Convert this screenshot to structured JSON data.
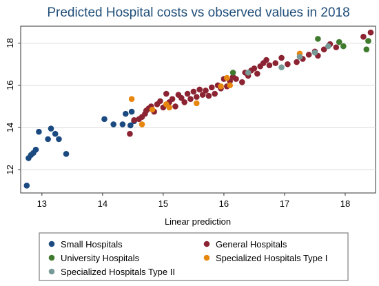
{
  "chart_data": {
    "type": "scatter",
    "title": "Predicted Hospital costs vs observed values in 2018",
    "xlabel": "Linear prediction",
    "ylabel": "",
    "xlim": [
      12.65,
      18.5
    ],
    "ylim": [
      10.9,
      18.8
    ],
    "xticks": [
      "13",
      "14",
      "15",
      "16",
      "17",
      "18"
    ],
    "yticks": [
      "12",
      "14",
      "16",
      "18"
    ],
    "grid": "horizontal",
    "legend_position": "bottom",
    "series": [
      {
        "name": "Small Hospitals",
        "color": "#1a4a80",
        "points": [
          [
            12.75,
            11.25
          ],
          [
            12.78,
            12.55
          ],
          [
            12.82,
            12.7
          ],
          [
            12.86,
            12.8
          ],
          [
            12.9,
            12.95
          ],
          [
            12.95,
            13.8
          ],
          [
            13.1,
            13.45
          ],
          [
            13.15,
            13.95
          ],
          [
            13.22,
            13.7
          ],
          [
            13.28,
            13.45
          ],
          [
            13.4,
            12.75
          ],
          [
            14.03,
            14.4
          ],
          [
            14.18,
            14.15
          ],
          [
            14.33,
            14.15
          ],
          [
            14.38,
            14.65
          ],
          [
            14.46,
            14.1
          ],
          [
            14.48,
            14.75
          ],
          [
            14.52,
            14.3
          ]
        ]
      },
      {
        "name": "General Hospitals",
        "color": "#8b2332",
        "points": [
          [
            14.45,
            13.7
          ],
          [
            14.52,
            14.35
          ],
          [
            14.6,
            14.4
          ],
          [
            14.65,
            14.5
          ],
          [
            14.7,
            14.65
          ],
          [
            14.72,
            14.8
          ],
          [
            14.76,
            14.9
          ],
          [
            14.8,
            15.0
          ],
          [
            14.85,
            14.75
          ],
          [
            14.9,
            15.1
          ],
          [
            14.95,
            15.25
          ],
          [
            15.0,
            14.95
          ],
          [
            15.05,
            15.6
          ],
          [
            15.1,
            15.2
          ],
          [
            15.15,
            15.35
          ],
          [
            15.2,
            15.0
          ],
          [
            15.25,
            15.55
          ],
          [
            15.3,
            15.4
          ],
          [
            15.35,
            15.2
          ],
          [
            15.4,
            15.6
          ],
          [
            15.45,
            15.35
          ],
          [
            15.5,
            15.7
          ],
          [
            15.55,
            15.45
          ],
          [
            15.6,
            15.8
          ],
          [
            15.65,
            15.55
          ],
          [
            15.7,
            15.75
          ],
          [
            15.75,
            15.5
          ],
          [
            15.8,
            15.9
          ],
          [
            15.85,
            15.6
          ],
          [
            15.9,
            16.0
          ],
          [
            15.95,
            15.85
          ],
          [
            16.0,
            16.3
          ],
          [
            16.05,
            15.95
          ],
          [
            16.1,
            16.2
          ],
          [
            16.15,
            16.4
          ],
          [
            16.2,
            16.3
          ],
          [
            16.3,
            16.15
          ],
          [
            16.35,
            16.6
          ],
          [
            16.4,
            16.45
          ],
          [
            16.45,
            16.7
          ],
          [
            16.5,
            16.8
          ],
          [
            16.55,
            16.55
          ],
          [
            16.6,
            16.9
          ],
          [
            16.65,
            17.05
          ],
          [
            16.7,
            17.2
          ],
          [
            16.75,
            16.95
          ],
          [
            16.85,
            17.05
          ],
          [
            16.95,
            17.3
          ],
          [
            17.05,
            17.0
          ],
          [
            17.2,
            17.1
          ],
          [
            17.3,
            17.25
          ],
          [
            17.4,
            17.45
          ],
          [
            17.5,
            17.6
          ],
          [
            17.55,
            17.4
          ],
          [
            17.65,
            17.7
          ],
          [
            17.75,
            17.95
          ],
          [
            17.85,
            17.8
          ],
          [
            18.3,
            18.3
          ],
          [
            18.42,
            18.5
          ]
        ]
      },
      {
        "name": "University Hospitals",
        "color": "#3f7a2d",
        "points": [
          [
            16.15,
            16.6
          ],
          [
            17.55,
            18.2
          ],
          [
            17.9,
            18.05
          ],
          [
            17.97,
            17.85
          ],
          [
            18.35,
            17.7
          ],
          [
            18.38,
            18.1
          ]
        ]
      },
      {
        "name": "Specialized Hospitals Type I",
        "color": "#e8870e",
        "points": [
          [
            14.48,
            15.35
          ],
          [
            14.65,
            14.15
          ],
          [
            14.82,
            14.85
          ],
          [
            15.05,
            15.1
          ],
          [
            15.1,
            14.95
          ],
          [
            15.55,
            15.15
          ],
          [
            15.95,
            15.95
          ],
          [
            16.05,
            16.35
          ],
          [
            16.1,
            16.0
          ],
          [
            17.25,
            17.5
          ]
        ]
      },
      {
        "name": "Specialized Hospitals Type II",
        "color": "#789a96",
        "points": [
          [
            16.4,
            16.6
          ],
          [
            16.95,
            16.85
          ],
          [
            17.25,
            17.35
          ],
          [
            17.5,
            17.55
          ],
          [
            17.72,
            17.85
          ]
        ]
      }
    ],
    "legend": [
      {
        "label": "Small Hospitals",
        "color": "#1a4a80"
      },
      {
        "label": "General Hospitals",
        "color": "#8b2332"
      },
      {
        "label": "University Hospitals",
        "color": "#3f7a2d"
      },
      {
        "label": "Specialized Hospitals Type I",
        "color": "#e8870e"
      },
      {
        "label": "Specialized Hospitals Type II",
        "color": "#789a96"
      }
    ]
  }
}
